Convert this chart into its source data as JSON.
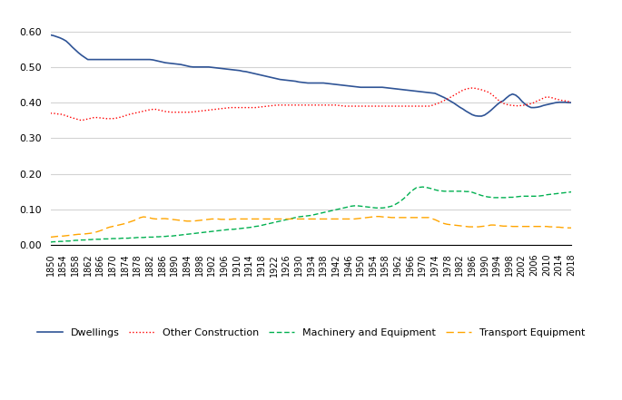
{
  "years": [
    1850,
    1851,
    1852,
    1853,
    1854,
    1855,
    1856,
    1857,
    1858,
    1859,
    1860,
    1861,
    1862,
    1863,
    1864,
    1865,
    1866,
    1867,
    1868,
    1869,
    1870,
    1871,
    1872,
    1873,
    1874,
    1875,
    1876,
    1877,
    1878,
    1879,
    1880,
    1881,
    1882,
    1883,
    1884,
    1885,
    1886,
    1887,
    1888,
    1889,
    1890,
    1891,
    1892,
    1893,
    1894,
    1895,
    1896,
    1897,
    1898,
    1899,
    1900,
    1901,
    1902,
    1903,
    1904,
    1905,
    1906,
    1907,
    1908,
    1909,
    1910,
    1911,
    1912,
    1913,
    1914,
    1915,
    1916,
    1917,
    1918,
    1919,
    1920,
    1921,
    1922,
    1923,
    1924,
    1925,
    1926,
    1927,
    1928,
    1929,
    1930,
    1931,
    1932,
    1933,
    1934,
    1935,
    1936,
    1937,
    1938,
    1939,
    1940,
    1941,
    1942,
    1943,
    1944,
    1945,
    1946,
    1947,
    1948,
    1949,
    1950,
    1951,
    1952,
    1953,
    1954,
    1955,
    1956,
    1957,
    1958,
    1959,
    1960,
    1961,
    1962,
    1963,
    1964,
    1965,
    1966,
    1967,
    1968,
    1969,
    1970,
    1971,
    1972,
    1973,
    1974,
    1975,
    1976,
    1977,
    1978,
    1979,
    1980,
    1981,
    1982,
    1983,
    1984,
    1985,
    1986,
    1987,
    1988,
    1989,
    1990,
    1991,
    1992,
    1993,
    1994,
    1995,
    1996,
    1997,
    1998,
    1999,
    2000,
    2001,
    2002,
    2003,
    2004,
    2005,
    2006,
    2007,
    2008,
    2009,
    2010,
    2011,
    2012,
    2013,
    2014,
    2015,
    2016,
    2017,
    2018
  ],
  "dwellings": [
    0.59,
    0.588,
    0.585,
    0.582,
    0.578,
    0.573,
    0.565,
    0.556,
    0.548,
    0.54,
    0.533,
    0.527,
    0.521,
    0.521,
    0.521,
    0.521,
    0.521,
    0.521,
    0.521,
    0.521,
    0.521,
    0.521,
    0.521,
    0.521,
    0.521,
    0.521,
    0.521,
    0.521,
    0.521,
    0.521,
    0.521,
    0.521,
    0.521,
    0.52,
    0.518,
    0.516,
    0.514,
    0.512,
    0.511,
    0.51,
    0.509,
    0.508,
    0.507,
    0.505,
    0.503,
    0.501,
    0.5,
    0.5,
    0.5,
    0.5,
    0.5,
    0.5,
    0.499,
    0.498,
    0.497,
    0.496,
    0.495,
    0.494,
    0.493,
    0.492,
    0.491,
    0.49,
    0.488,
    0.487,
    0.485,
    0.483,
    0.481,
    0.479,
    0.477,
    0.475,
    0.473,
    0.471,
    0.469,
    0.467,
    0.465,
    0.464,
    0.463,
    0.462,
    0.461,
    0.46,
    0.458,
    0.457,
    0.456,
    0.455,
    0.455,
    0.455,
    0.455,
    0.455,
    0.455,
    0.454,
    0.453,
    0.452,
    0.451,
    0.45,
    0.449,
    0.448,
    0.447,
    0.446,
    0.445,
    0.444,
    0.443,
    0.443,
    0.443,
    0.443,
    0.443,
    0.443,
    0.443,
    0.443,
    0.442,
    0.441,
    0.44,
    0.439,
    0.438,
    0.437,
    0.436,
    0.435,
    0.434,
    0.433,
    0.432,
    0.431,
    0.43,
    0.429,
    0.428,
    0.427,
    0.426,
    0.422,
    0.418,
    0.414,
    0.409,
    0.404,
    0.399,
    0.393,
    0.387,
    0.382,
    0.376,
    0.371,
    0.366,
    0.363,
    0.362,
    0.362,
    0.365,
    0.371,
    0.378,
    0.386,
    0.394,
    0.401,
    0.405,
    0.413,
    0.42,
    0.424,
    0.421,
    0.414,
    0.404,
    0.396,
    0.39,
    0.386,
    0.386,
    0.387,
    0.389,
    0.392,
    0.394,
    0.396,
    0.398,
    0.4,
    0.401,
    0.401,
    0.401,
    0.4,
    0.4
  ],
  "other_construction": [
    0.37,
    0.37,
    0.368,
    0.368,
    0.366,
    0.363,
    0.36,
    0.357,
    0.355,
    0.352,
    0.35,
    0.352,
    0.354,
    0.356,
    0.358,
    0.358,
    0.357,
    0.356,
    0.355,
    0.355,
    0.355,
    0.356,
    0.358,
    0.36,
    0.363,
    0.366,
    0.368,
    0.37,
    0.372,
    0.374,
    0.376,
    0.378,
    0.38,
    0.381,
    0.381,
    0.379,
    0.377,
    0.375,
    0.374,
    0.373,
    0.373,
    0.373,
    0.373,
    0.373,
    0.373,
    0.373,
    0.374,
    0.375,
    0.376,
    0.377,
    0.378,
    0.379,
    0.38,
    0.381,
    0.382,
    0.383,
    0.384,
    0.385,
    0.386,
    0.386,
    0.386,
    0.386,
    0.386,
    0.386,
    0.386,
    0.386,
    0.386,
    0.387,
    0.388,
    0.389,
    0.39,
    0.391,
    0.392,
    0.393,
    0.393,
    0.393,
    0.393,
    0.393,
    0.393,
    0.393,
    0.393,
    0.393,
    0.393,
    0.393,
    0.393,
    0.393,
    0.393,
    0.393,
    0.393,
    0.393,
    0.393,
    0.393,
    0.393,
    0.392,
    0.391,
    0.39,
    0.39,
    0.39,
    0.39,
    0.39,
    0.39,
    0.39,
    0.39,
    0.39,
    0.39,
    0.39,
    0.39,
    0.39,
    0.39,
    0.39,
    0.39,
    0.39,
    0.39,
    0.39,
    0.39,
    0.39,
    0.39,
    0.39,
    0.39,
    0.39,
    0.39,
    0.39,
    0.39,
    0.392,
    0.395,
    0.398,
    0.402,
    0.406,
    0.41,
    0.415,
    0.42,
    0.425,
    0.43,
    0.435,
    0.438,
    0.44,
    0.441,
    0.44,
    0.438,
    0.436,
    0.433,
    0.43,
    0.425,
    0.418,
    0.41,
    0.403,
    0.398,
    0.395,
    0.393,
    0.392,
    0.391,
    0.391,
    0.392,
    0.393,
    0.395,
    0.397,
    0.4,
    0.405,
    0.408,
    0.413,
    0.416,
    0.415,
    0.413,
    0.41,
    0.408,
    0.406,
    0.405,
    0.403,
    0.402
  ],
  "machinery_equipment": [
    0.008,
    0.009,
    0.009,
    0.01,
    0.01,
    0.011,
    0.011,
    0.012,
    0.013,
    0.013,
    0.014,
    0.014,
    0.015,
    0.015,
    0.016,
    0.016,
    0.016,
    0.017,
    0.017,
    0.017,
    0.018,
    0.018,
    0.018,
    0.019,
    0.019,
    0.019,
    0.02,
    0.02,
    0.021,
    0.021,
    0.021,
    0.022,
    0.022,
    0.022,
    0.023,
    0.023,
    0.024,
    0.024,
    0.025,
    0.025,
    0.026,
    0.027,
    0.028,
    0.029,
    0.03,
    0.031,
    0.032,
    0.033,
    0.034,
    0.035,
    0.036,
    0.037,
    0.038,
    0.039,
    0.04,
    0.041,
    0.042,
    0.043,
    0.044,
    0.044,
    0.045,
    0.046,
    0.047,
    0.048,
    0.049,
    0.05,
    0.052,
    0.053,
    0.055,
    0.057,
    0.059,
    0.061,
    0.063,
    0.065,
    0.067,
    0.069,
    0.071,
    0.073,
    0.075,
    0.077,
    0.079,
    0.08,
    0.081,
    0.082,
    0.083,
    0.085,
    0.087,
    0.089,
    0.091,
    0.093,
    0.095,
    0.097,
    0.099,
    0.101,
    0.103,
    0.105,
    0.107,
    0.109,
    0.11,
    0.11,
    0.109,
    0.108,
    0.107,
    0.106,
    0.105,
    0.104,
    0.104,
    0.104,
    0.105,
    0.107,
    0.109,
    0.113,
    0.118,
    0.124,
    0.131,
    0.139,
    0.148,
    0.155,
    0.161,
    0.162,
    0.163,
    0.162,
    0.16,
    0.158,
    0.155,
    0.153,
    0.152,
    0.151,
    0.151,
    0.151,
    0.151,
    0.151,
    0.151,
    0.151,
    0.15,
    0.15,
    0.148,
    0.145,
    0.142,
    0.139,
    0.137,
    0.135,
    0.134,
    0.133,
    0.133,
    0.133,
    0.133,
    0.133,
    0.134,
    0.134,
    0.135,
    0.136,
    0.137,
    0.137,
    0.137,
    0.137,
    0.137,
    0.137,
    0.138,
    0.139,
    0.141,
    0.142,
    0.143,
    0.144,
    0.145,
    0.146,
    0.147,
    0.148,
    0.149
  ],
  "transport_equipment": [
    0.022,
    0.023,
    0.024,
    0.025,
    0.025,
    0.026,
    0.027,
    0.028,
    0.029,
    0.03,
    0.03,
    0.031,
    0.032,
    0.033,
    0.035,
    0.037,
    0.04,
    0.043,
    0.047,
    0.05,
    0.052,
    0.054,
    0.056,
    0.058,
    0.06,
    0.063,
    0.066,
    0.069,
    0.073,
    0.077,
    0.079,
    0.078,
    0.076,
    0.074,
    0.073,
    0.073,
    0.074,
    0.074,
    0.073,
    0.072,
    0.071,
    0.07,
    0.069,
    0.068,
    0.067,
    0.067,
    0.067,
    0.068,
    0.069,
    0.07,
    0.071,
    0.072,
    0.073,
    0.073,
    0.073,
    0.072,
    0.072,
    0.072,
    0.072,
    0.073,
    0.073,
    0.073,
    0.073,
    0.073,
    0.073,
    0.073,
    0.073,
    0.073,
    0.073,
    0.073,
    0.073,
    0.073,
    0.073,
    0.073,
    0.073,
    0.073,
    0.073,
    0.073,
    0.073,
    0.073,
    0.073,
    0.073,
    0.073,
    0.073,
    0.073,
    0.073,
    0.073,
    0.073,
    0.073,
    0.073,
    0.073,
    0.073,
    0.073,
    0.073,
    0.073,
    0.073,
    0.073,
    0.073,
    0.073,
    0.074,
    0.075,
    0.076,
    0.077,
    0.078,
    0.079,
    0.08,
    0.08,
    0.079,
    0.078,
    0.078,
    0.077,
    0.077,
    0.077,
    0.077,
    0.077,
    0.077,
    0.077,
    0.077,
    0.077,
    0.077,
    0.077,
    0.077,
    0.077,
    0.074,
    0.071,
    0.067,
    0.063,
    0.06,
    0.058,
    0.057,
    0.056,
    0.055,
    0.054,
    0.053,
    0.052,
    0.051,
    0.051,
    0.051,
    0.051,
    0.052,
    0.053,
    0.054,
    0.056,
    0.056,
    0.055,
    0.054,
    0.053,
    0.053,
    0.053,
    0.052,
    0.052,
    0.052,
    0.052,
    0.052,
    0.052,
    0.052,
    0.052,
    0.052,
    0.052,
    0.052,
    0.052,
    0.051,
    0.051,
    0.05,
    0.05,
    0.049,
    0.049,
    0.048,
    0.048
  ],
  "dwellings_color": "#2F5496",
  "other_construction_color": "#FF0000",
  "machinery_color": "#00B050",
  "transport_color": "#FFA500",
  "ylim": [
    0.0,
    0.65
  ],
  "yticks": [
    0.0,
    0.1,
    0.2,
    0.3,
    0.4,
    0.5,
    0.6
  ],
  "xtick_years": [
    1850,
    1854,
    1858,
    1862,
    1866,
    1870,
    1874,
    1878,
    1882,
    1886,
    1890,
    1894,
    1898,
    1902,
    1906,
    1910,
    1914,
    1918,
    1922,
    1926,
    1930,
    1934,
    1938,
    1942,
    1946,
    1950,
    1954,
    1958,
    1962,
    1966,
    1970,
    1974,
    1978,
    1982,
    1986,
    1990,
    1994,
    1998,
    2002,
    2006,
    2010,
    2014,
    2018
  ]
}
